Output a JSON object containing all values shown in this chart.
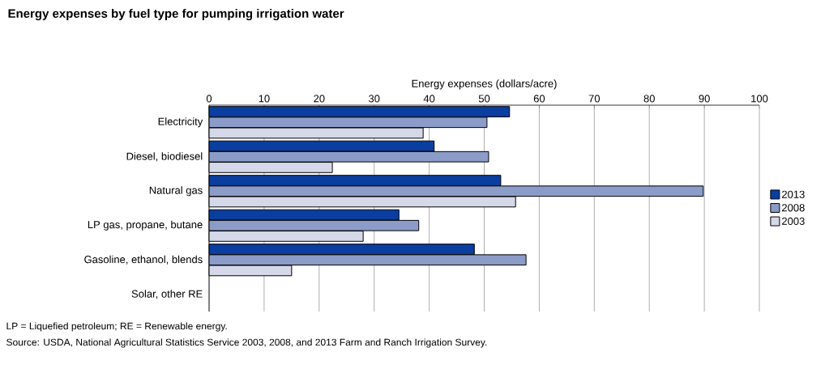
{
  "chart_data": {
    "type": "bar",
    "orientation": "horizontal",
    "title": "Energy expenses by fuel type for pumping irrigation water",
    "xlabel": "Energy expenses (dollars/acre)",
    "categories": [
      "Electricity",
      "Diesel, biodiesel",
      "Natural gas",
      "LP gas, propane, butane",
      "Gasoline, ethanol, blends",
      "Solar, other RE"
    ],
    "series": [
      {
        "name": "2013",
        "color": "#0a3ea0",
        "values": [
          54.6,
          40.9,
          53.0,
          34.5,
          48.2,
          null
        ]
      },
      {
        "name": "2008",
        "color": "#8c9cc8",
        "values": [
          50.5,
          50.8,
          89.8,
          38.1,
          57.6,
          null
        ]
      },
      {
        "name": "2003",
        "color": "#d4d8e8",
        "values": [
          38.9,
          22.4,
          55.7,
          28.0,
          15.0,
          null
        ]
      }
    ],
    "xlim": [
      0,
      100
    ],
    "xticks": [
      0,
      10,
      20,
      30,
      40,
      50,
      60,
      70,
      80,
      90,
      100
    ],
    "grid": "x",
    "legend": "right",
    "annotations": [
      "LP = Liquefied petroleum; RE = Renewable energy.",
      "Source: USDA, National Agricultural Statistics Service 2003, 2008, and 2013 Farm and Ranch Irrigation Survey."
    ]
  }
}
